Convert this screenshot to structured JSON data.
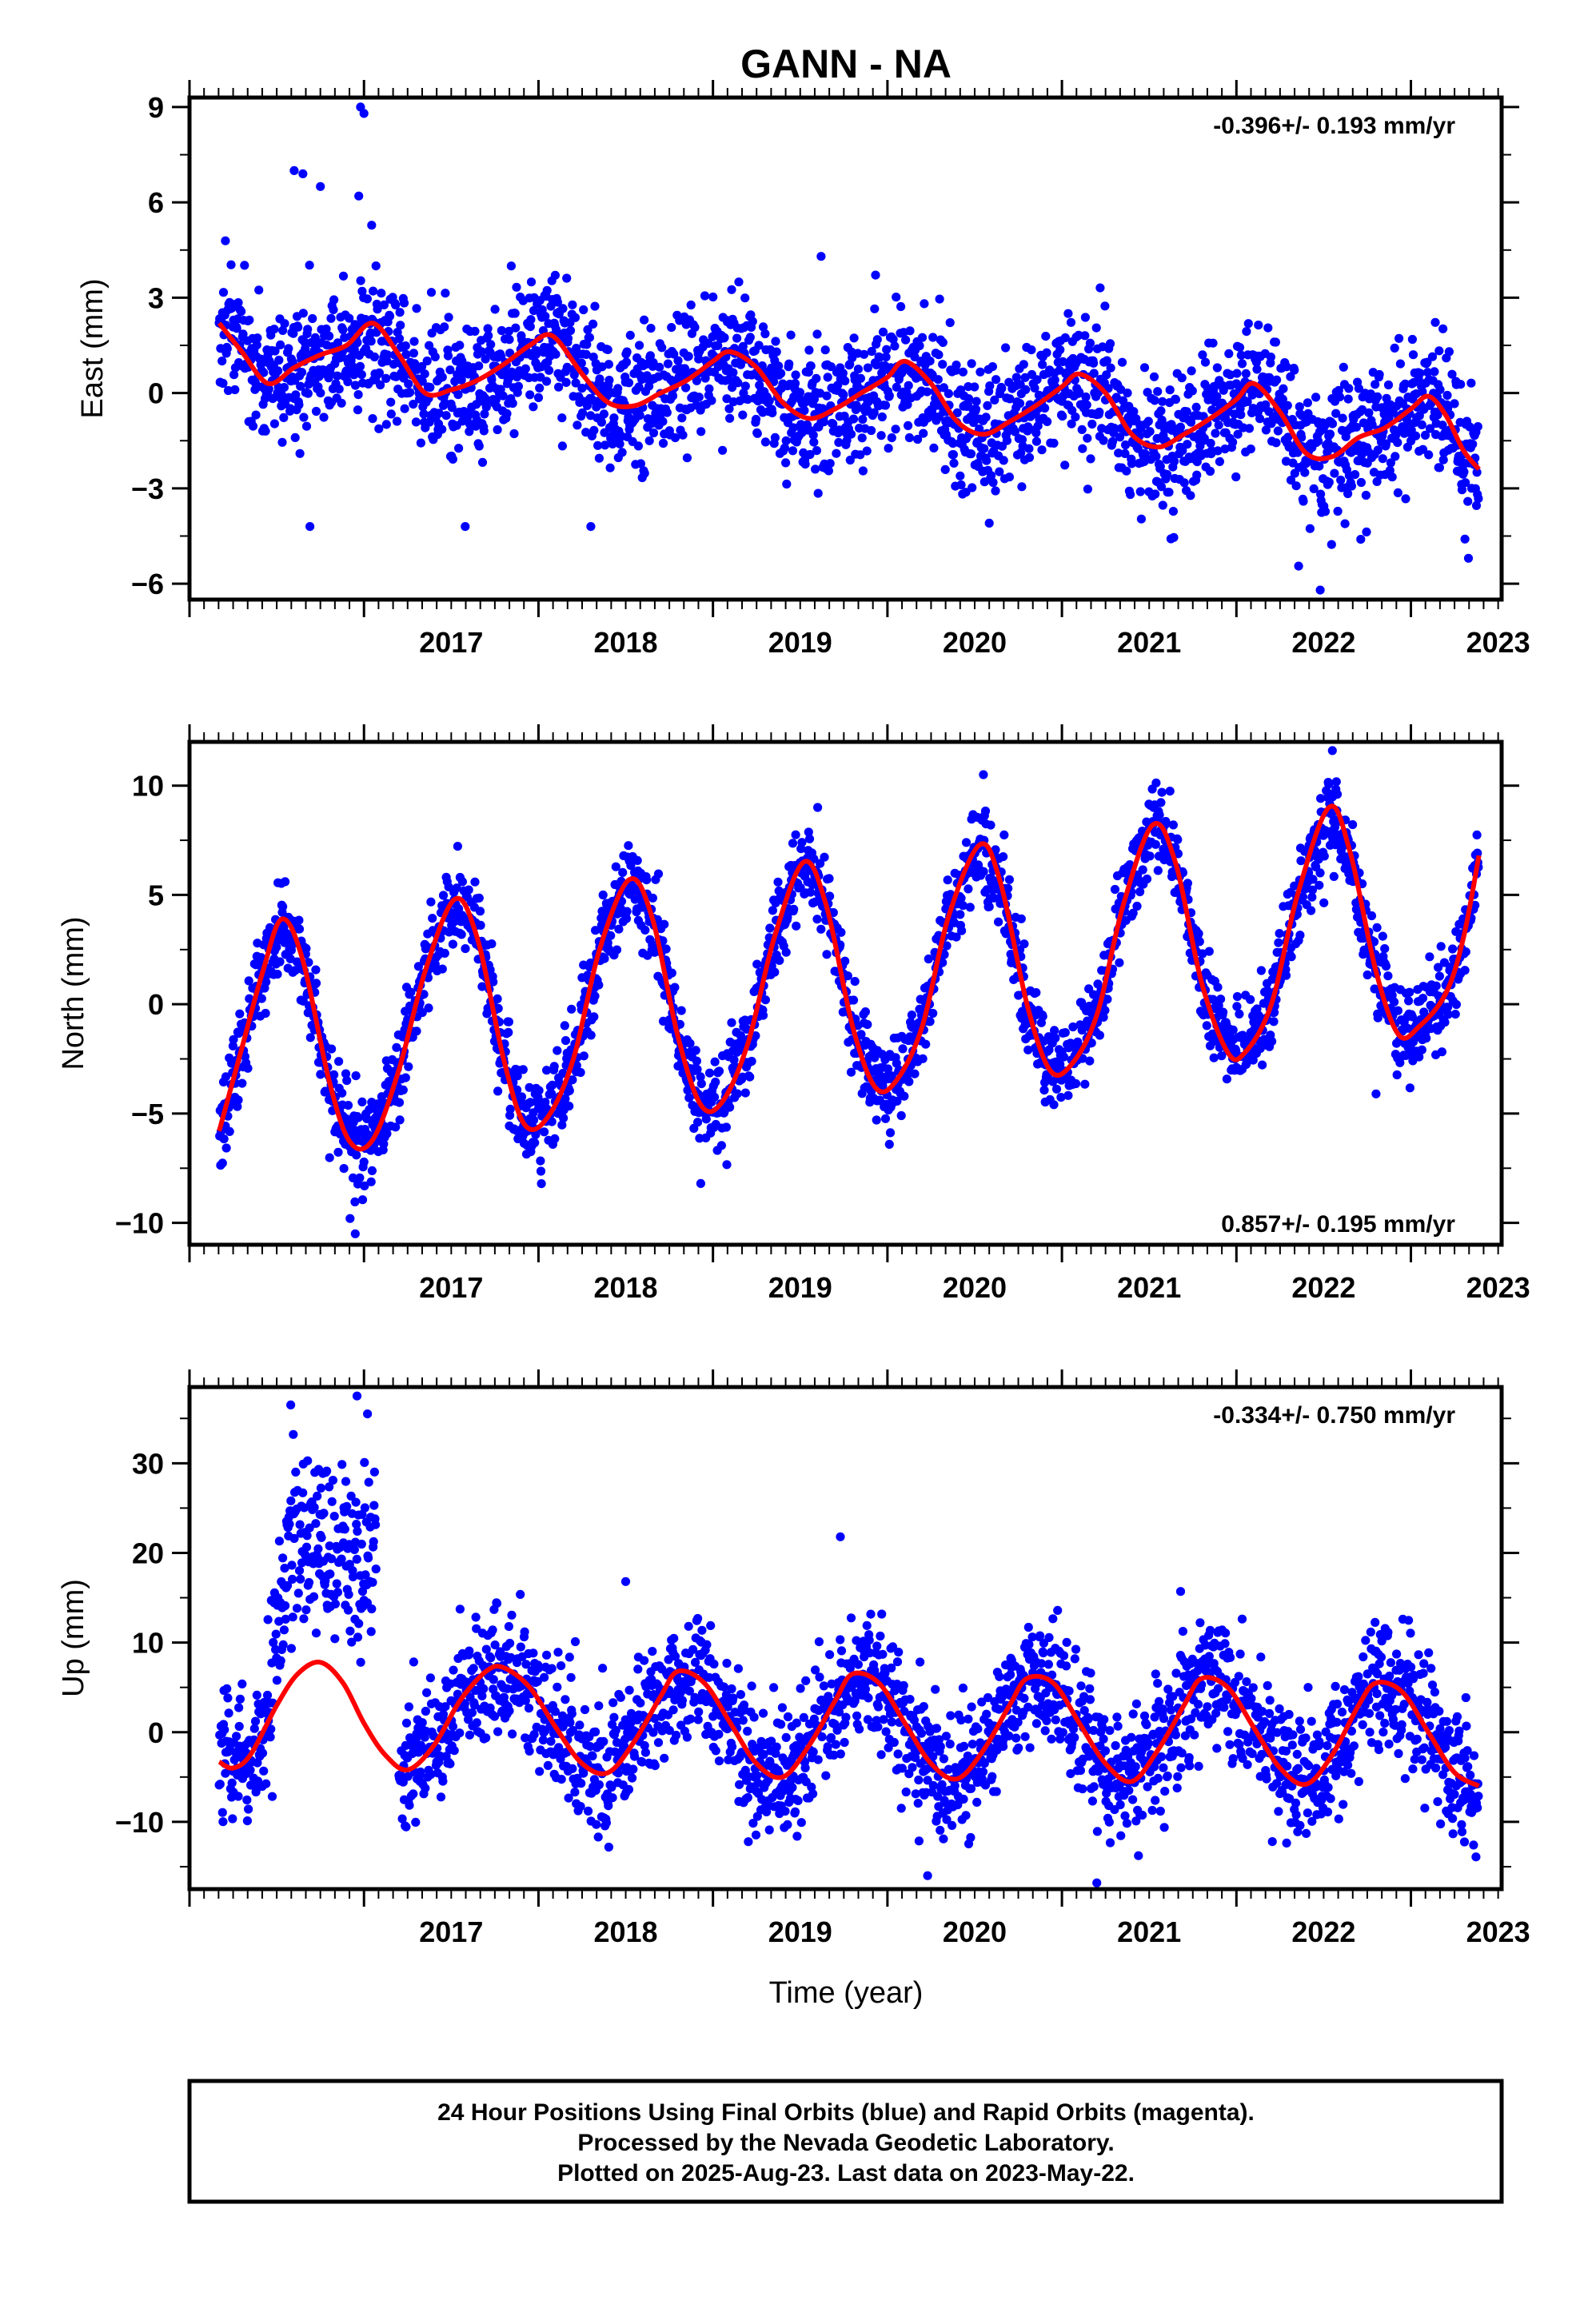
{
  "title": "GANN - NA",
  "xlabel": "Time (year)",
  "footer": {
    "line1": "24 Hour Positions Using Final Orbits (blue) and Rapid Orbits (magenta).",
    "line2": "Processed by the Nevada Geodetic Laboratory.",
    "line3": "Plotted on 2025-Aug-23. Last data on 2023-May-22."
  },
  "colors": {
    "observations": "#0000ff",
    "model": "#ff0000",
    "frame": "#000000"
  },
  "chart_data": [
    {
      "type": "scatter",
      "component": "east",
      "ylabel": "East (mm)",
      "rate_text": "-0.396+/- 0.193 mm/yr",
      "rate_value": -0.396,
      "rate_sigma": 0.193,
      "rate_position": "top-right",
      "xlim": [
        2016.0,
        2023.52
      ],
      "ylim": [
        -6.5,
        9.3
      ],
      "yticks": [
        -6,
        -3,
        0,
        3,
        6,
        9
      ],
      "yticklabels": [
        "−6",
        "−3",
        "0",
        "3",
        "6",
        "9"
      ],
      "xticks": [
        2017,
        2018,
        2019,
        2020,
        2021,
        2022,
        2023
      ],
      "xticklabels": [
        "2017",
        "2018",
        "2019",
        "2020",
        "2021",
        "2022",
        "2023"
      ],
      "data_start": 2016.17,
      "data_end": 2023.39,
      "series": [
        {
          "kind": "points",
          "marker": "dot",
          "model_x": [
            2016.17,
            2016.3,
            2016.45,
            2016.6,
            2016.75,
            2016.9,
            2017.05,
            2017.2,
            2017.35,
            2017.5,
            2017.65,
            2017.8,
            2017.95,
            2018.08,
            2018.25,
            2018.4,
            2018.55,
            2018.7,
            2018.85,
            2019.0,
            2019.1,
            2019.25,
            2019.4,
            2019.55,
            2019.7,
            2019.85,
            2020.0,
            2020.1,
            2020.25,
            2020.4,
            2020.55,
            2020.7,
            2020.85,
            2021.0,
            2021.1,
            2021.25,
            2021.4,
            2021.55,
            2021.7,
            2021.85,
            2022.0,
            2022.1,
            2022.25,
            2022.4,
            2022.55,
            2022.7,
            2022.85,
            2023.0,
            2023.1,
            2023.2,
            2023.3,
            2023.39
          ],
          "model_y": [
            2.2,
            1.3,
            0.3,
            0.8,
            1.2,
            1.5,
            2.2,
            1.2,
            0.0,
            0.1,
            0.4,
            0.9,
            1.5,
            1.8,
            0.6,
            -0.3,
            -0.4,
            0.0,
            0.4,
            1.0,
            1.3,
            0.8,
            -0.3,
            -0.8,
            -0.5,
            0.0,
            0.5,
            1.0,
            0.3,
            -0.9,
            -1.3,
            -0.9,
            -0.4,
            0.2,
            0.6,
            0.0,
            -1.3,
            -1.7,
            -1.3,
            -0.8,
            -0.2,
            0.3,
            -0.6,
            -1.9,
            -2.0,
            -1.4,
            -1.1,
            -0.5,
            -0.1,
            -0.7,
            -1.8,
            -2.4
          ],
          "noise_sd": 1.05,
          "outliers": [
            [
              2016.6,
              7.0
            ],
            [
              2016.65,
              6.9
            ],
            [
              2016.75,
              6.5
            ],
            [
              2016.98,
              9.0
            ],
            [
              2017.0,
              8.8
            ],
            [
              2016.97,
              6.2
            ],
            [
              2016.69,
              -4.2
            ],
            [
              2017.58,
              -4.2
            ],
            [
              2018.3,
              -4.2
            ],
            [
              2022.48,
              -6.2
            ],
            [
              2023.33,
              -5.2
            ],
            [
              2019.62,
              4.3
            ]
          ]
        },
        {
          "kind": "line",
          "use_model": true
        }
      ]
    },
    {
      "type": "scatter",
      "component": "north",
      "ylabel": "North (mm)",
      "rate_text": "0.857+/- 0.195 mm/yr",
      "rate_value": 0.857,
      "rate_sigma": 0.195,
      "rate_position": "bottom-right",
      "xlim": [
        2016.0,
        2023.52
      ],
      "ylim": [
        -11,
        12
      ],
      "yticks": [
        -10,
        -5,
        0,
        5,
        10
      ],
      "yticklabels": [
        "−10",
        "−5",
        "0",
        "5",
        "10"
      ],
      "xticks": [
        2017,
        2018,
        2019,
        2020,
        2021,
        2022,
        2023
      ],
      "xticklabels": [
        "2017",
        "2018",
        "2019",
        "2020",
        "2021",
        "2022",
        "2023"
      ],
      "data_start": 2016.17,
      "data_end": 2023.39,
      "series": [
        {
          "kind": "points",
          "marker": "dot",
          "model_x": [
            2016.17,
            2016.3,
            2016.42,
            2016.53,
            2016.65,
            2016.8,
            2016.92,
            2017.05,
            2017.2,
            2017.35,
            2017.52,
            2017.65,
            2017.8,
            2017.92,
            2018.05,
            2018.2,
            2018.35,
            2018.52,
            2018.65,
            2018.8,
            2018.93,
            2019.05,
            2019.2,
            2019.35,
            2019.52,
            2019.65,
            2019.8,
            2019.93,
            2020.05,
            2020.2,
            2020.35,
            2020.53,
            2020.65,
            2020.8,
            2020.93,
            2021.05,
            2021.2,
            2021.35,
            2021.52,
            2021.65,
            2021.8,
            2021.95,
            2022.05,
            2022.2,
            2022.35,
            2022.53,
            2022.65,
            2022.8,
            2022.93,
            2023.05,
            2023.2,
            2023.3,
            2023.39
          ],
          "model_y": [
            -5.8,
            -2.0,
            1.5,
            3.9,
            2.0,
            -3.5,
            -6.3,
            -6.2,
            -3.0,
            1.5,
            4.8,
            3.0,
            -2.5,
            -5.5,
            -5.2,
            -2.5,
            2.5,
            5.7,
            4.0,
            -1.5,
            -4.6,
            -4.5,
            -1.8,
            3.0,
            6.5,
            4.5,
            -1.0,
            -3.8,
            -3.5,
            -1.0,
            4.0,
            7.3,
            5.5,
            0.0,
            -3.0,
            -2.8,
            -0.5,
            4.5,
            8.2,
            6.5,
            1.0,
            -2.2,
            -2.2,
            0.0,
            5.0,
            9.0,
            7.0,
            1.5,
            -1.4,
            -1.0,
            0.5,
            3.0,
            6.8
          ],
          "noise_sd": 1.0,
          "outliers": [
            [
              2016.95,
              -10.5
            ],
            [
              2016.92,
              -9.8
            ],
            [
              2018.93,
              -8.2
            ],
            [
              2022.8,
              -4.1
            ],
            [
              2020.55,
              10.5
            ],
            [
              2022.55,
              11.6
            ],
            [
              2019.6,
              9.0
            ]
          ]
        },
        {
          "kind": "line",
          "use_model": true
        }
      ]
    },
    {
      "type": "scatter",
      "component": "up",
      "ylabel": "Up (mm)",
      "rate_text": "-0.334+/- 0.750 mm/yr",
      "rate_value": -0.334,
      "rate_sigma": 0.75,
      "rate_position": "top-right",
      "xlim": [
        2016.0,
        2023.52
      ],
      "ylim": [
        -17.5,
        38.5
      ],
      "yticks": [
        -10,
        0,
        10,
        20,
        30
      ],
      "yticklabels": [
        "−10",
        "0",
        "10",
        "20",
        "30"
      ],
      "xticks": [
        2017,
        2018,
        2019,
        2020,
        2021,
        2022,
        2023
      ],
      "xticklabels": [
        "2017",
        "2018",
        "2019",
        "2020",
        "2021",
        "2022",
        "2023"
      ],
      "data_start": 2016.17,
      "data_end": 2023.39,
      "gap": [
        2017.07,
        2017.2
      ],
      "series": [
        {
          "kind": "points",
          "marker": "dot",
          "model_x": [
            2016.17,
            2016.25,
            2016.35,
            2016.5,
            2016.62,
            2016.75,
            2016.88,
            2017.0,
            2017.12,
            2017.25,
            2017.4,
            2017.55,
            2017.7,
            2017.8,
            2017.95,
            2018.1,
            2018.25,
            2018.4,
            2018.55,
            2018.7,
            2018.8,
            2018.95,
            2019.1,
            2019.25,
            2019.4,
            2019.55,
            2019.7,
            2019.8,
            2019.95,
            2020.1,
            2020.25,
            2020.4,
            2020.55,
            2020.7,
            2020.8,
            2020.95,
            2021.1,
            2021.25,
            2021.4,
            2021.55,
            2021.7,
            2021.8,
            2021.95,
            2022.1,
            2022.25,
            2022.4,
            2022.55,
            2022.7,
            2022.8,
            2022.95,
            2023.1,
            2023.25,
            2023.39
          ],
          "model_y": [
            -3.3,
            -4.0,
            -2.5,
            3.0,
            6.5,
            7.8,
            5.5,
            1.0,
            -2.5,
            -4.2,
            -1.5,
            3.5,
            6.8,
            7.2,
            5.0,
            0.5,
            -3.5,
            -4.5,
            -1.0,
            4.0,
            6.8,
            5.5,
            1.0,
            -3.5,
            -5.0,
            -1.5,
            3.5,
            6.5,
            5.5,
            1.0,
            -3.5,
            -5.2,
            -2.0,
            3.0,
            6.0,
            5.5,
            1.0,
            -3.5,
            -5.5,
            -2.0,
            3.0,
            6.0,
            5.0,
            0.5,
            -4.0,
            -5.8,
            -2.5,
            3.0,
            5.5,
            4.5,
            0.0,
            -4.5,
            -6.0
          ],
          "noise_sd": 3.6,
          "anomaly": {
            "x_start": 2016.45,
            "x_end": 2017.07,
            "center": 20,
            "sd": 5
          },
          "outliers": [
            [
              2016.58,
              36.5
            ],
            [
              2016.96,
              37.5
            ],
            [
              2017.02,
              35.5
            ],
            [
              2019.73,
              21.8
            ],
            [
              2020.23,
              -16.0
            ],
            [
              2021.2,
              -16.8
            ],
            [
              2018.5,
              16.8
            ],
            [
              2021.68,
              15.7
            ]
          ]
        },
        {
          "kind": "line",
          "use_model": true,
          "extrapolate_through_gap": true
        }
      ]
    }
  ]
}
